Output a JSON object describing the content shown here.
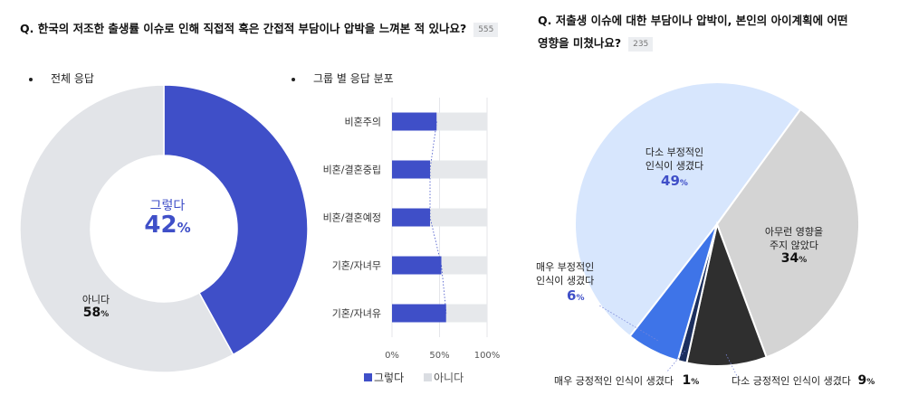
{
  "left_question": {
    "text": "Q. 한국의 저조한 출생률 이슈로 인해 직접적 혹은 간접적 부담이나 압박을 느껴본 적 있나요?",
    "count": "555"
  },
  "right_question": {
    "line1": "Q. 저출생 이슈에 대한 부담이나 압박이, 본인의 아이계획에 어떤",
    "line2": "영향을 미쳤나요?",
    "count": "235"
  },
  "section_overall": "전체 응답",
  "section_group": "그룹 별 응답 분포",
  "colors": {
    "yes": "#3f4fc8",
    "no": "#e2e4e8",
    "bar_no": "#e6e8eb",
    "pie_very_neg": "#3e74e8",
    "pie_some_neg": "#d7e6fd",
    "pie_none": "#d4d4d4",
    "pie_some_pos": "#2f2f2f",
    "pie_very_pos": "#1c2f5e"
  },
  "chart_data": [
    {
      "type": "pie",
      "variant": "donut",
      "slices": [
        {
          "label": "그렇다",
          "value": 42,
          "unit": "%"
        },
        {
          "label": "아니다",
          "value": 58,
          "unit": "%"
        }
      ]
    },
    {
      "type": "bar",
      "orientation": "horizontal",
      "stacked": true,
      "categories": [
        "비혼주의",
        "비혼/결혼중립",
        "비혼/결혼예정",
        "기혼/자녀무",
        "기혼/자녀유"
      ],
      "series": [
        {
          "name": "그렇다",
          "values": [
            47,
            40,
            40,
            52,
            57
          ]
        },
        {
          "name": "아니다",
          "values": [
            53,
            60,
            60,
            48,
            43
          ]
        }
      ],
      "xticks": [
        "0%",
        "50%",
        "100%"
      ],
      "xlim": [
        0,
        100
      ],
      "grid": true,
      "legend": "bottom"
    },
    {
      "type": "pie",
      "slices": [
        {
          "label_lines": [
            "다소 부정적인",
            "인식이 생겼다"
          ],
          "value": 49,
          "unit": "%"
        },
        {
          "label_lines": [
            "아무런 영향을",
            "주지 않았다"
          ],
          "value": 34,
          "unit": "%"
        },
        {
          "label_lines": [
            "다소 긍정적인 인식이 생겼다"
          ],
          "value": 9,
          "unit": "%"
        },
        {
          "label_lines": [
            "매우 긍정적인 인식이 생겼다"
          ],
          "value": 1,
          "unit": "%"
        },
        {
          "label_lines": [
            "매우 부정적인",
            "인식이 생겼다"
          ],
          "value": 6,
          "unit": "%"
        }
      ]
    }
  ]
}
